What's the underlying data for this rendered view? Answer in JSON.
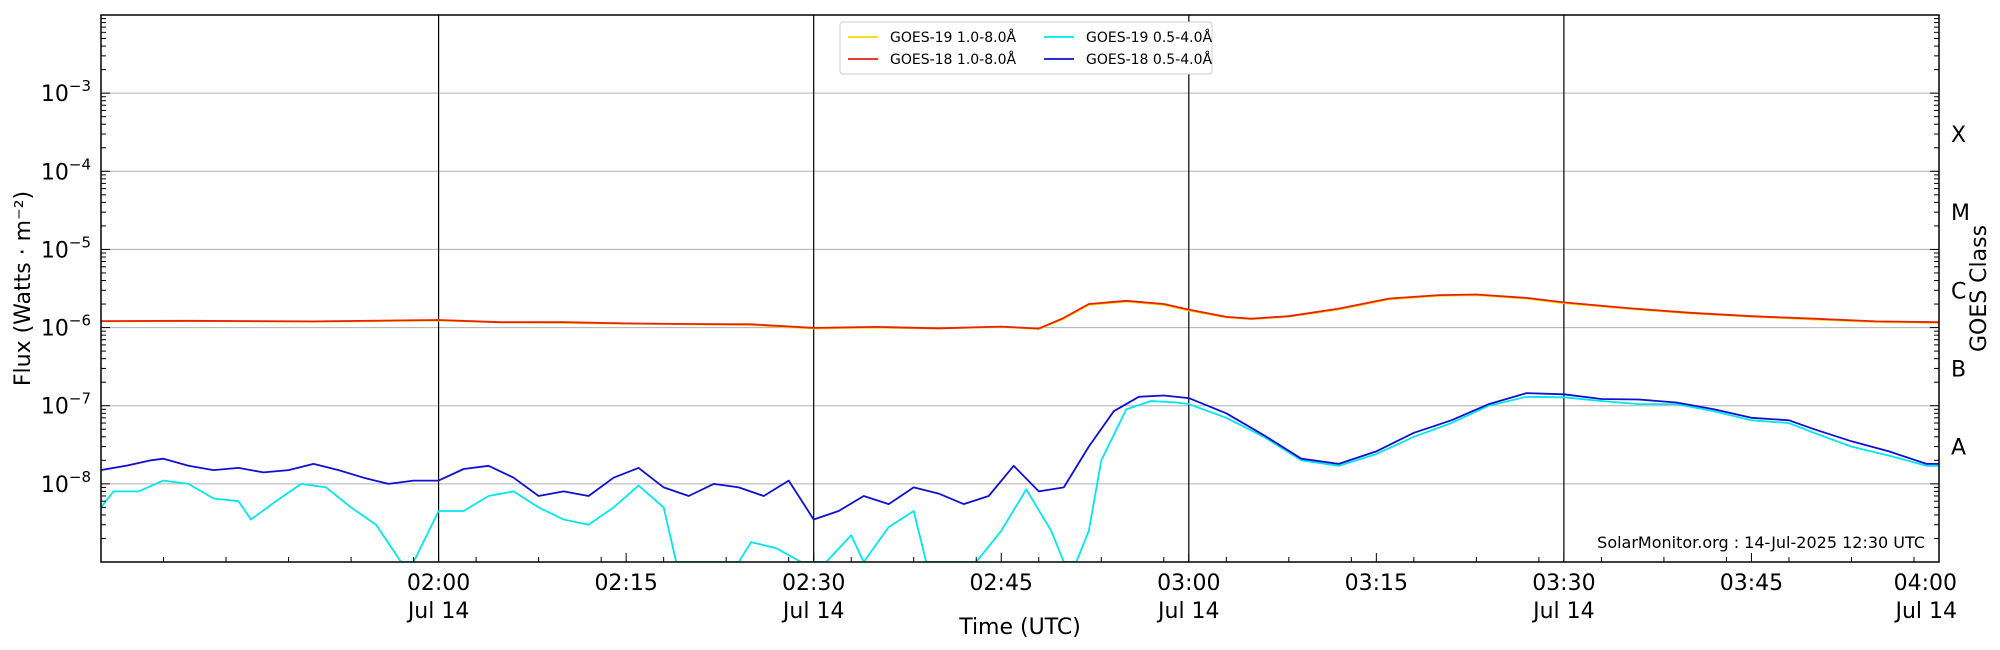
{
  "chart_data": {
    "type": "line",
    "xlabel": "Time (UTC)",
    "ylabel": "Flux (Watts · m⁻²)",
    "y2label": "GOES Class",
    "yscale": "log",
    "ylim": [
      1e-09,
      0.01
    ],
    "x_range": [
      "01:33",
      "04:00"
    ],
    "x_ticks": [
      {
        "time": "02:00",
        "label": "02:00",
        "date": "Jul 14",
        "major": true
      },
      {
        "time": "02:15",
        "label": "02:15",
        "date": "",
        "major": false
      },
      {
        "time": "02:30",
        "label": "02:30",
        "date": "Jul 14",
        "major": true
      },
      {
        "time": "02:45",
        "label": "02:45",
        "date": "",
        "major": false
      },
      {
        "time": "03:00",
        "label": "03:00",
        "date": "Jul 14",
        "major": true
      },
      {
        "time": "03:15",
        "label": "03:15",
        "date": "",
        "major": false
      },
      {
        "time": "03:30",
        "label": "03:30",
        "date": "Jul 14",
        "major": true
      },
      {
        "time": "03:45",
        "label": "03:45",
        "date": "",
        "major": false
      },
      {
        "time": "04:00",
        "label": "04:00",
        "date": "Jul 14",
        "major": true
      }
    ],
    "y_ticks": [
      {
        "value": 1e-08,
        "label": "10",
        "exp": "−8"
      },
      {
        "value": 1e-07,
        "label": "10",
        "exp": "−7"
      },
      {
        "value": 1e-06,
        "label": "10",
        "exp": "−6"
      },
      {
        "value": 1e-05,
        "label": "10",
        "exp": "−5"
      },
      {
        "value": 0.0001,
        "label": "10",
        "exp": "−4"
      },
      {
        "value": 0.001,
        "label": "10",
        "exp": "−3"
      }
    ],
    "goes_classes": [
      {
        "label": "A",
        "value": 3e-08
      },
      {
        "label": "B",
        "value": 3e-07
      },
      {
        "label": "C",
        "value": 3e-06
      },
      {
        "label": "M",
        "value": 3e-05
      },
      {
        "label": "X",
        "value": 0.0003
      }
    ],
    "grid": true,
    "legend_position": "top-center",
    "credit": "SolarMonitor.org : 14-Jul-2025 12:30 UTC",
    "series": [
      {
        "name": "GOES-19 1.0-8.0Å",
        "color": "#ffd700",
        "points": [
          [
            "01:33",
            1.2e-06
          ],
          [
            "01:40",
            1.21e-06
          ],
          [
            "01:50",
            1.19e-06
          ],
          [
            "02:00",
            1.23e-06
          ],
          [
            "02:05",
            1.16e-06
          ],
          [
            "02:10",
            1.15e-06
          ],
          [
            "02:15",
            1.12e-06
          ],
          [
            "02:20",
            1.1e-06
          ],
          [
            "02:25",
            1.08e-06
          ],
          [
            "02:30",
            9.7e-07
          ],
          [
            "02:35",
            1e-06
          ],
          [
            "02:40",
            9.7e-07
          ],
          [
            "02:45",
            1.02e-06
          ],
          [
            "02:48",
            9.6e-07
          ],
          [
            "02:50",
            1.3e-06
          ],
          [
            "02:52",
            1.95e-06
          ],
          [
            "02:55",
            2.15e-06
          ],
          [
            "02:58",
            1.95e-06
          ],
          [
            "03:00",
            1.65e-06
          ],
          [
            "03:03",
            1.35e-06
          ],
          [
            "03:05",
            1.28e-06
          ],
          [
            "03:08",
            1.38e-06
          ],
          [
            "03:12",
            1.7e-06
          ],
          [
            "03:16",
            2.3e-06
          ],
          [
            "03:20",
            2.55e-06
          ],
          [
            "03:23",
            2.6e-06
          ],
          [
            "03:27",
            2.35e-06
          ],
          [
            "03:30",
            2.05e-06
          ],
          [
            "03:35",
            1.75e-06
          ],
          [
            "03:40",
            1.52e-06
          ],
          [
            "03:45",
            1.38e-06
          ],
          [
            "03:50",
            1.27e-06
          ],
          [
            "03:55",
            1.18e-06
          ],
          [
            "04:00",
            1.15e-06
          ]
        ]
      },
      {
        "name": "GOES-18 1.0-8.0Å",
        "color": "#e8200c",
        "points": [
          [
            "01:33",
            1.21e-06
          ],
          [
            "01:40",
            1.22e-06
          ],
          [
            "01:50",
            1.2e-06
          ],
          [
            "02:00",
            1.25e-06
          ],
          [
            "02:05",
            1.17e-06
          ],
          [
            "02:10",
            1.17e-06
          ],
          [
            "02:15",
            1.13e-06
          ],
          [
            "02:20",
            1.11e-06
          ],
          [
            "02:25",
            1.1e-06
          ],
          [
            "02:30",
            9.9e-07
          ],
          [
            "02:35",
            1.02e-06
          ],
          [
            "02:40",
            9.8e-07
          ],
          [
            "02:45",
            1.03e-06
          ],
          [
            "02:48",
            9.7e-07
          ],
          [
            "02:50",
            1.33e-06
          ],
          [
            "02:52",
            2e-06
          ],
          [
            "02:55",
            2.2e-06
          ],
          [
            "02:58",
            2e-06
          ],
          [
            "03:00",
            1.7e-06
          ],
          [
            "03:03",
            1.37e-06
          ],
          [
            "03:05",
            1.3e-06
          ],
          [
            "03:08",
            1.4e-06
          ],
          [
            "03:12",
            1.75e-06
          ],
          [
            "03:16",
            2.35e-06
          ],
          [
            "03:20",
            2.6e-06
          ],
          [
            "03:23",
            2.65e-06
          ],
          [
            "03:27",
            2.4e-06
          ],
          [
            "03:30",
            2.1e-06
          ],
          [
            "03:35",
            1.78e-06
          ],
          [
            "03:40",
            1.55e-06
          ],
          [
            "03:45",
            1.4e-06
          ],
          [
            "03:50",
            1.3e-06
          ],
          [
            "03:55",
            1.2e-06
          ],
          [
            "04:00",
            1.17e-06
          ]
        ]
      },
      {
        "name": "GOES-19 0.5-4.0Å",
        "color": "#00e5ee",
        "points": [
          [
            "01:33",
            5e-09
          ],
          [
            "01:34",
            8e-09
          ],
          [
            "01:36",
            8e-09
          ],
          [
            "01:38",
            1.1e-08
          ],
          [
            "01:40",
            1e-08
          ],
          [
            "01:42",
            6.5e-09
          ],
          [
            "01:44",
            6e-09
          ],
          [
            "01:45",
            3.5e-09
          ],
          [
            "01:47",
            6e-09
          ],
          [
            "01:49",
            1e-08
          ],
          [
            "01:51",
            9e-09
          ],
          [
            "01:53",
            5e-09
          ],
          [
            "01:55",
            3e-09
          ],
          [
            "01:57",
            1e-09
          ],
          [
            "01:58",
            1e-09
          ],
          [
            "02:00",
            4.5e-09
          ],
          [
            "02:02",
            4.5e-09
          ],
          [
            "02:04",
            7e-09
          ],
          [
            "02:06",
            8e-09
          ],
          [
            "02:08",
            5e-09
          ],
          [
            "02:10",
            3.5e-09
          ],
          [
            "02:12",
            3e-09
          ],
          [
            "02:14",
            5e-09
          ],
          [
            "02:16",
            9.5e-09
          ],
          [
            "02:18",
            5e-09
          ],
          [
            "02:19",
            1e-09
          ],
          [
            "02:24",
            1e-09
          ],
          [
            "02:25",
            1.8e-09
          ],
          [
            "02:27",
            1.5e-09
          ],
          [
            "02:29",
            1e-09
          ],
          [
            "02:31",
            1e-09
          ],
          [
            "02:33",
            2.2e-09
          ],
          [
            "02:34",
            1e-09
          ],
          [
            "02:36",
            2.8e-09
          ],
          [
            "02:38",
            4.5e-09
          ],
          [
            "02:39",
            1e-09
          ],
          [
            "02:43",
            1e-09
          ],
          [
            "02:45",
            2.5e-09
          ],
          [
            "02:47",
            8.5e-09
          ],
          [
            "02:49",
            2.5e-09
          ],
          [
            "02:50",
            1e-09
          ],
          [
            "02:51",
            1e-09
          ],
          [
            "02:52",
            2.5e-09
          ],
          [
            "02:53",
            2e-08
          ],
          [
            "02:55",
            9e-08
          ],
          [
            "02:57",
            1.15e-07
          ],
          [
            "02:59",
            1.1e-07
          ],
          [
            "03:00",
            1.05e-07
          ],
          [
            "03:03",
            7e-08
          ],
          [
            "03:06",
            4e-08
          ],
          [
            "03:09",
            2e-08
          ],
          [
            "03:12",
            1.7e-08
          ],
          [
            "03:15",
            2.4e-08
          ],
          [
            "03:18",
            4e-08
          ],
          [
            "03:21",
            6e-08
          ],
          [
            "03:24",
            1e-07
          ],
          [
            "03:27",
            1.3e-07
          ],
          [
            "03:30",
            1.28e-07
          ],
          [
            "03:33",
            1.15e-07
          ],
          [
            "03:36",
            1.05e-07
          ],
          [
            "03:39",
            1.05e-07
          ],
          [
            "03:42",
            8.5e-08
          ],
          [
            "03:45",
            6.5e-08
          ],
          [
            "03:48",
            6e-08
          ],
          [
            "03:50",
            4.5e-08
          ],
          [
            "03:53",
            3e-08
          ],
          [
            "03:56",
            2.3e-08
          ],
          [
            "03:59",
            1.7e-08
          ],
          [
            "04:00",
            1.7e-08
          ]
        ]
      },
      {
        "name": "GOES-18 0.5-4.0Å",
        "color": "#1010d0",
        "points": [
          [
            "01:33",
            1.5e-08
          ],
          [
            "01:35",
            1.7e-08
          ],
          [
            "01:37",
            2e-08
          ],
          [
            "01:38",
            2.1e-08
          ],
          [
            "01:40",
            1.7e-08
          ],
          [
            "01:42",
            1.5e-08
          ],
          [
            "01:44",
            1.6e-08
          ],
          [
            "01:46",
            1.4e-08
          ],
          [
            "01:48",
            1.5e-08
          ],
          [
            "01:50",
            1.8e-08
          ],
          [
            "01:52",
            1.5e-08
          ],
          [
            "01:54",
            1.2e-08
          ],
          [
            "01:56",
            1e-08
          ],
          [
            "01:58",
            1.1e-08
          ],
          [
            "02:00",
            1.1e-08
          ],
          [
            "02:02",
            1.55e-08
          ],
          [
            "02:04",
            1.7e-08
          ],
          [
            "02:06",
            1.2e-08
          ],
          [
            "02:08",
            7e-09
          ],
          [
            "02:10",
            8e-09
          ],
          [
            "02:12",
            7e-09
          ],
          [
            "02:14",
            1.2e-08
          ],
          [
            "02:16",
            1.6e-08
          ],
          [
            "02:18",
            9e-09
          ],
          [
            "02:20",
            7e-09
          ],
          [
            "02:22",
            1e-08
          ],
          [
            "02:24",
            9e-09
          ],
          [
            "02:26",
            7e-09
          ],
          [
            "02:28",
            1.1e-08
          ],
          [
            "02:30",
            3.5e-09
          ],
          [
            "02:32",
            4.5e-09
          ],
          [
            "02:34",
            7e-09
          ],
          [
            "02:36",
            5.5e-09
          ],
          [
            "02:38",
            9e-09
          ],
          [
            "02:40",
            7.5e-09
          ],
          [
            "02:42",
            5.5e-09
          ],
          [
            "02:44",
            7e-09
          ],
          [
            "02:46",
            1.7e-08
          ],
          [
            "02:48",
            8e-09
          ],
          [
            "02:50",
            9e-09
          ],
          [
            "02:52",
            3e-08
          ],
          [
            "02:54",
            8.5e-08
          ],
          [
            "02:56",
            1.3e-07
          ],
          [
            "02:58",
            1.35e-07
          ],
          [
            "03:00",
            1.25e-07
          ],
          [
            "03:03",
            8e-08
          ],
          [
            "03:06",
            4.2e-08
          ],
          [
            "03:09",
            2.1e-08
          ],
          [
            "03:12",
            1.8e-08
          ],
          [
            "03:15",
            2.6e-08
          ],
          [
            "03:18",
            4.5e-08
          ],
          [
            "03:21",
            6.5e-08
          ],
          [
            "03:24",
            1.05e-07
          ],
          [
            "03:27",
            1.45e-07
          ],
          [
            "03:30",
            1.4e-07
          ],
          [
            "03:33",
            1.22e-07
          ],
          [
            "03:36",
            1.2e-07
          ],
          [
            "03:39",
            1.1e-07
          ],
          [
            "03:42",
            9e-08
          ],
          [
            "03:45",
            7e-08
          ],
          [
            "03:48",
            6.5e-08
          ],
          [
            "03:50",
            5e-08
          ],
          [
            "03:53",
            3.5e-08
          ],
          [
            "03:56",
            2.6e-08
          ],
          [
            "03:59",
            1.8e-08
          ],
          [
            "04:00",
            1.8e-08
          ]
        ]
      }
    ]
  }
}
